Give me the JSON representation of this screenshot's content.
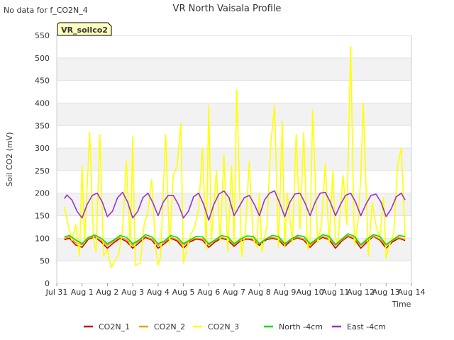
{
  "note": "No data for f_CO2N_4",
  "chart_data": {
    "type": "line",
    "title": "VR North Vaisala Profile",
    "xlabel": "Time",
    "ylabel": "Soil CO2 (mV)",
    "ylim": [
      0,
      550
    ],
    "y_ticks": [
      0,
      50,
      100,
      150,
      200,
      250,
      300,
      350,
      400,
      450,
      500,
      550
    ],
    "xlim": [
      0,
      14
    ],
    "x_ticks": [
      "Jul 31",
      "Aug 1",
      "Aug 2",
      "Aug 3",
      "Aug 4",
      "Aug 5",
      "Aug 6",
      "Aug 7",
      "Aug 8",
      "Aug 9",
      "Aug 10",
      "Aug 11",
      "Aug 12",
      "Aug 13",
      "Aug 14"
    ],
    "x_unit": "days since Jul 31",
    "grid": true,
    "station_box": {
      "label": "VR_soilco2",
      "bg": "#ffffc0",
      "text_color": "#8b0000"
    },
    "legend_position": "bottom",
    "series": [
      {
        "name": "CO2N_1",
        "color": "#cc0000",
        "x": [
          0.3,
          0.5,
          0.75,
          1.0,
          1.25,
          1.5,
          1.75,
          2.0,
          2.25,
          2.5,
          2.75,
          3.0,
          3.25,
          3.5,
          3.75,
          4.0,
          4.25,
          4.5,
          4.75,
          5.0,
          5.25,
          5.5,
          5.75,
          6.0,
          6.25,
          6.5,
          6.75,
          7.0,
          7.25,
          7.5,
          7.75,
          8.0,
          8.25,
          8.5,
          8.75,
          9.0,
          9.25,
          9.5,
          9.75,
          10.0,
          10.25,
          10.5,
          10.75,
          11.0,
          11.25,
          11.5,
          11.75,
          12.0,
          12.25,
          12.5,
          12.75,
          13.0,
          13.25,
          13.5,
          13.75
        ],
        "y": [
          97,
          100,
          85,
          80,
          98,
          103,
          92,
          78,
          90,
          100,
          93,
          78,
          90,
          102,
          96,
          78,
          88,
          100,
          94,
          78,
          92,
          98,
          96,
          80,
          92,
          100,
          96,
          82,
          94,
          98,
          96,
          84,
          96,
          100,
          97,
          82,
          95,
          101,
          96,
          80,
          94,
          102,
          97,
          78,
          94,
          104,
          98,
          78,
          92,
          104,
          96,
          78,
          92,
          100,
          95
        ]
      },
      {
        "name": "CO2N_2",
        "color": "#ff9900",
        "x": [
          0.3,
          0.5,
          0.75,
          1.0,
          1.25,
          1.5,
          1.75,
          2.0,
          2.25,
          2.5,
          2.75,
          3.0,
          3.25,
          3.5,
          3.75,
          4.0,
          4.25,
          4.5,
          4.75,
          5.0,
          5.25,
          5.5,
          5.75,
          6.0,
          6.25,
          6.5,
          6.75,
          7.0,
          7.25,
          7.5,
          7.75,
          8.0,
          8.25,
          8.5,
          8.75,
          9.0,
          9.25,
          9.5,
          9.75,
          10.0,
          10.25,
          10.5,
          10.75,
          11.0,
          11.25,
          11.5,
          11.75,
          12.0,
          12.25,
          12.5,
          12.75,
          13.0,
          13.25,
          13.5,
          13.75
        ],
        "y": [
          100,
          103,
          90,
          86,
          100,
          104,
          95,
          84,
          94,
          102,
          97,
          84,
          94,
          104,
          98,
          84,
          92,
          102,
          97,
          84,
          95,
          100,
          98,
          85,
          95,
          102,
          98,
          86,
          96,
          100,
          98,
          88,
          98,
          102,
          99,
          86,
          97,
          103,
          98,
          85,
          96,
          104,
          99,
          84,
          96,
          106,
          100,
          84,
          95,
          105,
          98,
          84,
          95,
          102,
          97
        ]
      },
      {
        "name": "CO2N_3",
        "color": "#ffff00",
        "x": [
          0.3,
          0.45,
          0.6,
          0.75,
          0.9,
          1.0,
          1.1,
          1.3,
          1.45,
          1.55,
          1.7,
          1.85,
          2.0,
          2.15,
          2.3,
          2.45,
          2.6,
          2.75,
          2.9,
          3.0,
          3.1,
          3.3,
          3.45,
          3.6,
          3.75,
          3.9,
          4.0,
          4.1,
          4.3,
          4.45,
          4.6,
          4.75,
          4.9,
          5.0,
          5.15,
          5.3,
          5.45,
          5.6,
          5.75,
          5.9,
          6.0,
          6.1,
          6.3,
          6.45,
          6.6,
          6.75,
          6.9,
          7.0,
          7.1,
          7.3,
          7.45,
          7.6,
          7.75,
          7.9,
          8.0,
          8.1,
          8.3,
          8.45,
          8.6,
          8.75,
          8.9,
          9.0,
          9.1,
          9.3,
          9.45,
          9.6,
          9.75,
          9.9,
          10.0,
          10.1,
          10.3,
          10.45,
          10.6,
          10.75,
          10.9,
          11.0,
          11.1,
          11.3,
          11.45,
          11.6,
          11.75,
          11.9,
          12.0,
          12.1,
          12.3,
          12.45,
          12.6,
          12.75,
          12.9,
          13.0,
          13.1,
          13.3,
          13.45,
          13.6,
          13.75
        ],
        "y": [
          170,
          130,
          95,
          130,
          60,
          260,
          90,
          335,
          100,
          70,
          330,
          60,
          75,
          35,
          50,
          65,
          120,
          272,
          80,
          325,
          40,
          45,
          130,
          160,
          230,
          80,
          40,
          60,
          330,
          85,
          240,
          260,
          355,
          45,
          80,
          110,
          125,
          165,
          300,
          75,
          395,
          90,
          250,
          95,
          285,
          70,
          260,
          90,
          430,
          60,
          120,
          270,
          100,
          80,
          200,
          70,
          130,
          310,
          395,
          80,
          360,
          80,
          200,
          90,
          330,
          120,
          335,
          75,
          95,
          385,
          90,
          130,
          265,
          90,
          250,
          100,
          90,
          240,
          130,
          525,
          85,
          140,
          240,
          400,
          60,
          180,
          130,
          100,
          190,
          55,
          80,
          110,
          260,
          300,
          100
        ]
      },
      {
        "name": "North -4cm",
        "color": "#00dd00",
        "x": [
          0.3,
          0.5,
          0.75,
          1.0,
          1.25,
          1.5,
          1.75,
          2.0,
          2.25,
          2.5,
          2.75,
          3.0,
          3.25,
          3.5,
          3.75,
          4.0,
          4.25,
          4.5,
          4.75,
          5.0,
          5.25,
          5.5,
          5.75,
          6.0,
          6.25,
          6.5,
          6.75,
          7.0,
          7.25,
          7.5,
          7.75,
          8.0,
          8.25,
          8.5,
          8.75,
          9.0,
          9.25,
          9.5,
          9.75,
          10.0,
          10.25,
          10.5,
          10.75,
          11.0,
          11.25,
          11.5,
          11.75,
          12.0,
          12.25,
          12.5,
          12.75,
          13.0,
          13.25,
          13.5,
          13.75
        ],
        "y": [
          103,
          106,
          96,
          88,
          102,
          107,
          100,
          88,
          96,
          106,
          102,
          88,
          96,
          108,
          103,
          88,
          94,
          106,
          102,
          88,
          96,
          104,
          103,
          88,
          96,
          106,
          103,
          88,
          98,
          105,
          104,
          88,
          98,
          106,
          104,
          88,
          98,
          106,
          104,
          88,
          98,
          108,
          104,
          86,
          98,
          110,
          104,
          86,
          98,
          108,
          104,
          86,
          96,
          106,
          104
        ]
      },
      {
        "name": "East -4cm",
        "color": "#9933cc",
        "x": [
          0.3,
          0.4,
          0.6,
          0.8,
          1.0,
          1.2,
          1.4,
          1.6,
          1.8,
          2.0,
          2.2,
          2.4,
          2.6,
          2.8,
          3.0,
          3.2,
          3.4,
          3.6,
          3.8,
          4.0,
          4.2,
          4.4,
          4.6,
          4.8,
          5.0,
          5.2,
          5.4,
          5.6,
          5.8,
          6.0,
          6.2,
          6.4,
          6.6,
          6.8,
          7.0,
          7.2,
          7.4,
          7.6,
          7.8,
          8.0,
          8.2,
          8.4,
          8.6,
          8.8,
          9.0,
          9.2,
          9.4,
          9.6,
          9.8,
          10.0,
          10.2,
          10.4,
          10.6,
          10.8,
          11.0,
          11.2,
          11.4,
          11.6,
          11.8,
          12.0,
          12.2,
          12.4,
          12.6,
          12.8,
          13.0,
          13.2,
          13.4,
          13.6,
          13.75
        ],
        "y": [
          188,
          196,
          185,
          160,
          145,
          175,
          195,
          200,
          180,
          148,
          160,
          190,
          202,
          180,
          145,
          160,
          190,
          200,
          178,
          150,
          180,
          195,
          195,
          175,
          145,
          160,
          192,
          200,
          175,
          140,
          175,
          198,
          205,
          190,
          150,
          170,
          190,
          195,
          175,
          150,
          185,
          200,
          205,
          178,
          148,
          180,
          198,
          200,
          178,
          150,
          180,
          200,
          202,
          180,
          150,
          175,
          195,
          200,
          180,
          150,
          175,
          195,
          198,
          180,
          148,
          165,
          192,
          200,
          185
        ]
      }
    ]
  }
}
